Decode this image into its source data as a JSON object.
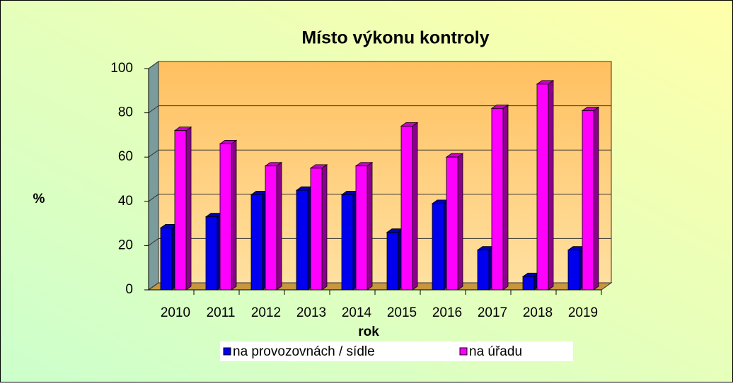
{
  "chart_data": {
    "type": "bar",
    "title": "Místo výkonu kontroly",
    "x_label": "rok",
    "y_label": "%",
    "categories": [
      "2010",
      "2011",
      "2012",
      "2013",
      "2014",
      "2015",
      "2016",
      "2017",
      "2018",
      "2019"
    ],
    "series": [
      {
        "name": "na provozovnách / sídle",
        "color": "#0000ee",
        "values": [
          28,
          33,
          43,
          45,
          43,
          26,
          39,
          18,
          6,
          18
        ]
      },
      {
        "name": "na úřadu",
        "color": "#ff00ff",
        "values": [
          72,
          66,
          56,
          55,
          56,
          74,
          60,
          82,
          93,
          81
        ]
      }
    ],
    "ylim": [
      0,
      100
    ],
    "yticks": [
      0,
      20,
      40,
      60,
      80,
      100
    ],
    "grid": true
  }
}
